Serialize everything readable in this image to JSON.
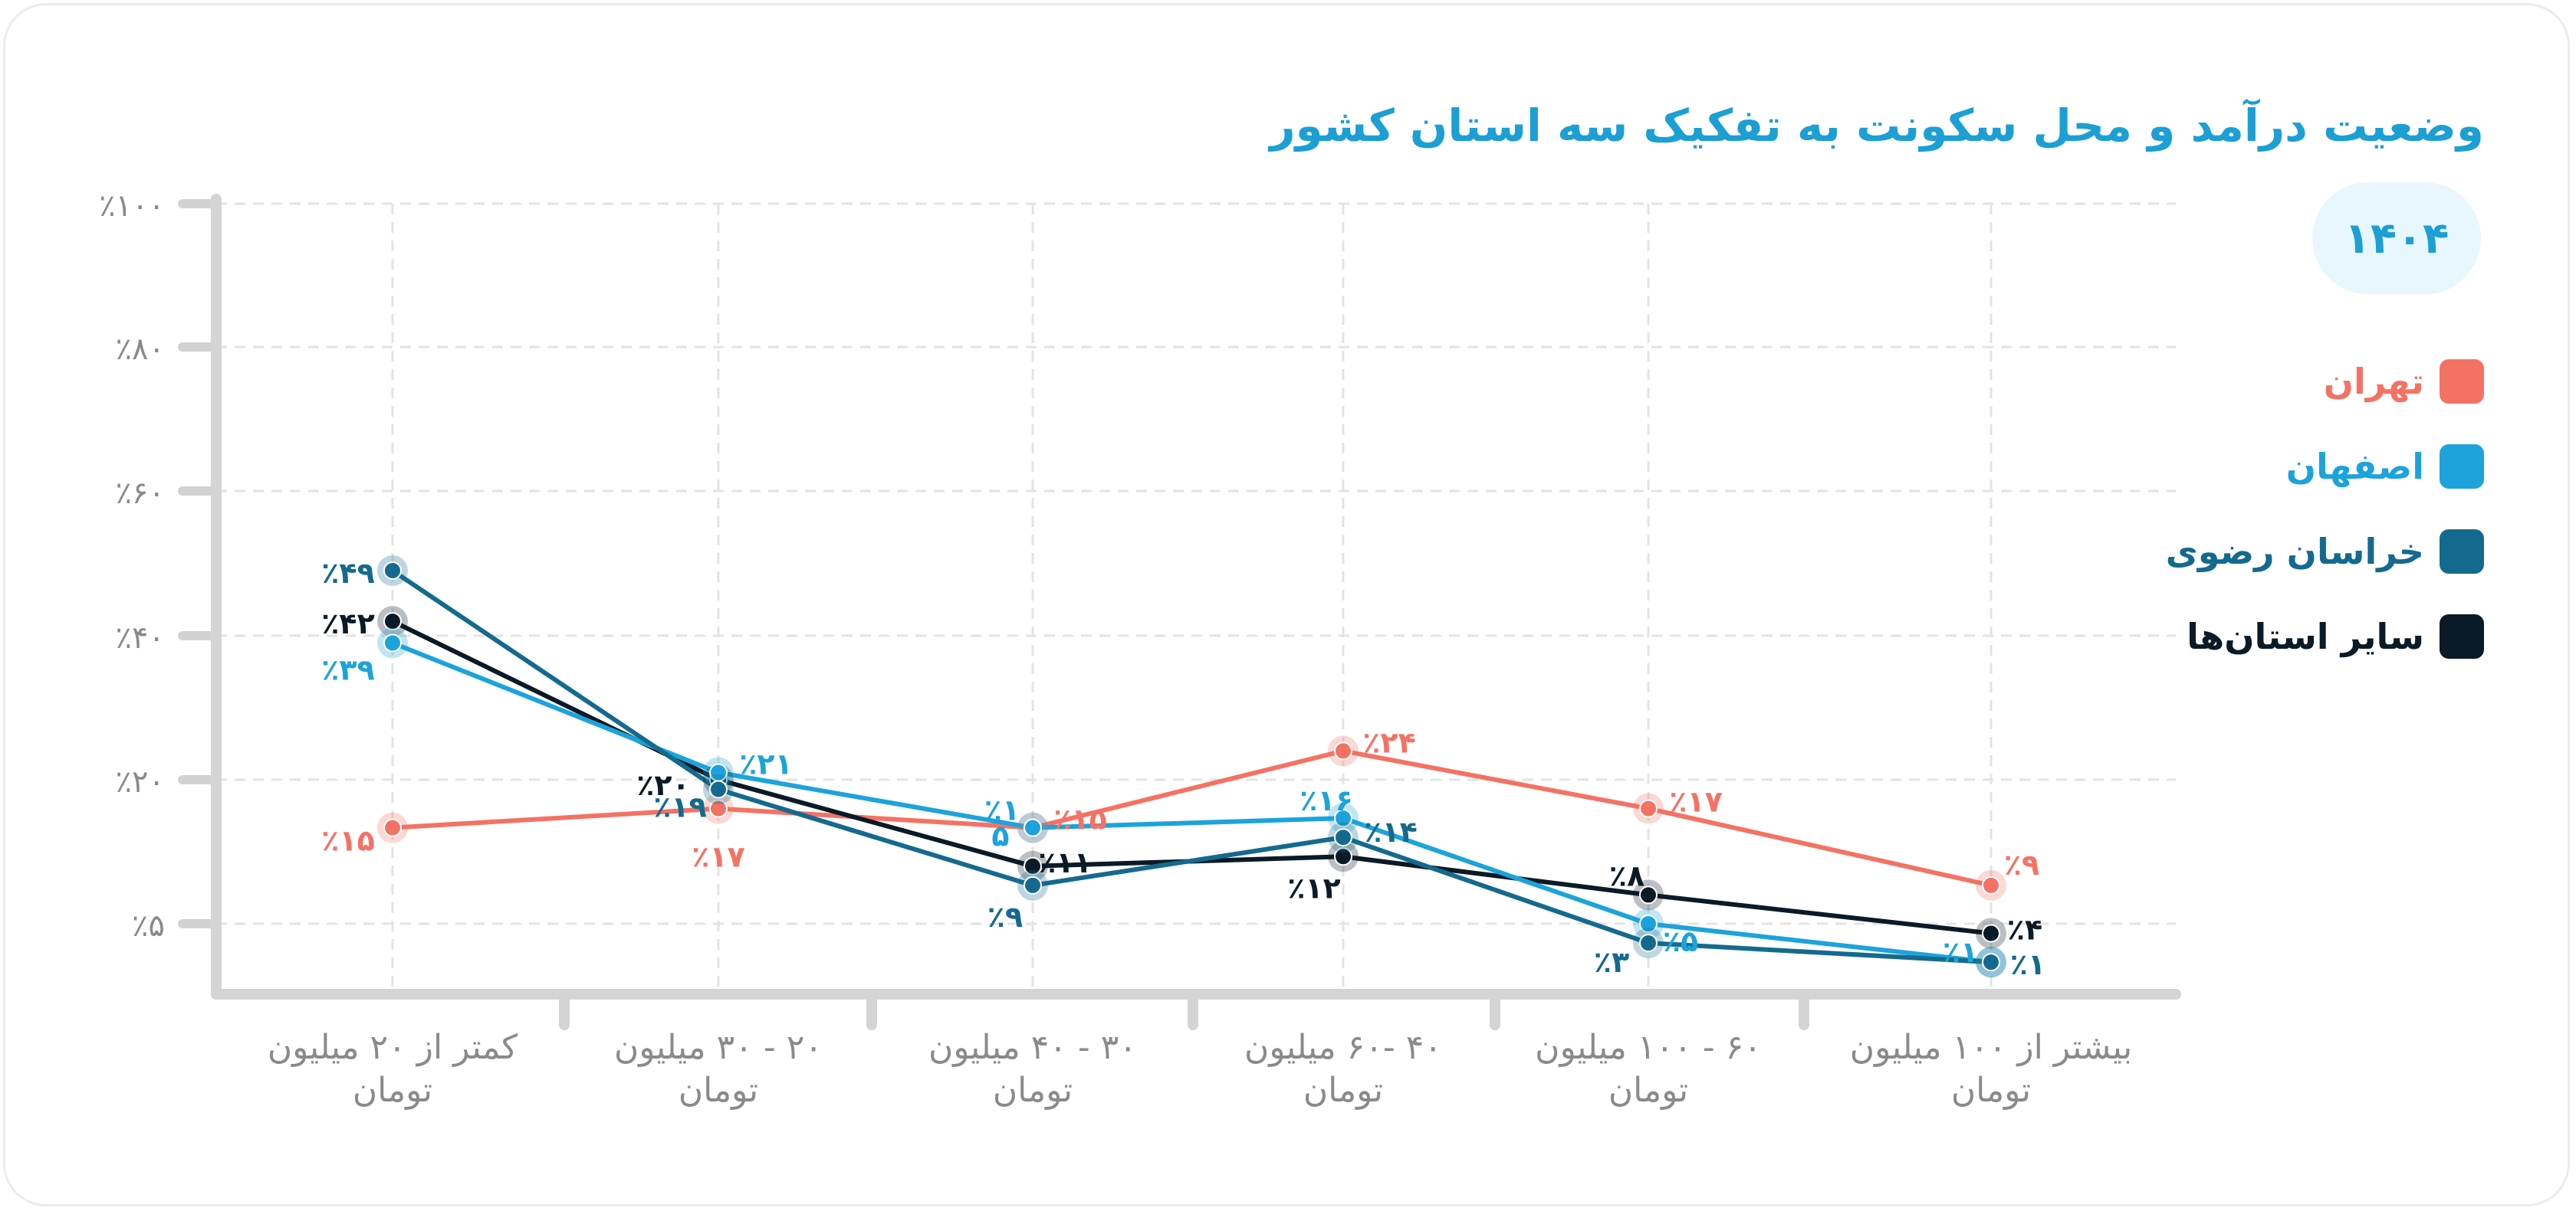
{
  "title": "وضعیت درآمد و محل سکونت به تفکیک سه استان کشور",
  "year": "۱۴۰۴",
  "chart_data": {
    "type": "line",
    "title": "وضعیت درآمد و محل سکونت به تفکیک سه استان کشور",
    "xlabel": "",
    "ylabel": "",
    "categories": [
      "کمتر از ۲۰ میلیون تومان",
      "۲۰ - ۳۰ میلیون تومان",
      "۳۰ - ۴۰ میلیون تومان",
      "۴۰ -۶۰ میلیون تومان",
      "۶۰ - ۱۰۰ میلیون تومان",
      "بیشتر از ۱۰۰ میلیون تومان"
    ],
    "category_lines": [
      [
        "کمتر از ۲۰ میلیون",
        "تومان"
      ],
      [
        "۲۰ - ۳۰ میلیون",
        "تومان"
      ],
      [
        "۳۰ - ۴۰ میلیون",
        "تومان"
      ],
      [
        "۴۰ -۶۰ میلیون",
        "تومان"
      ],
      [
        "۶۰ - ۱۰۰ میلیون",
        "تومان"
      ],
      [
        "بیشتر از ۱۰۰ میلیون",
        "تومان"
      ]
    ],
    "y_ticks": [
      {
        "value": 5,
        "label": "٪۵"
      },
      {
        "value": 20,
        "label": "٪۲۰"
      },
      {
        "value": 40,
        "label": "٪۴۰"
      },
      {
        "value": 60,
        "label": "٪۶۰"
      },
      {
        "value": 80,
        "label": "٪۸۰"
      },
      {
        "value": 100,
        "label": "٪۱۰۰"
      }
    ],
    "ylim": [
      0,
      100
    ],
    "grid": true,
    "legend_position": "right",
    "series": [
      {
        "name": "تهران",
        "color": "#f47264",
        "values": [
          15,
          17,
          15,
          24,
          17,
          9
        ],
        "labels": [
          "٪۱۵",
          "٪۱۷",
          "٪۱۵",
          "٪۲۴",
          "٪۱۷",
          "٪۹"
        ]
      },
      {
        "name": "اصفهان",
        "color": "#1ca3dc",
        "values": [
          39,
          21,
          15,
          16,
          5,
          1
        ],
        "labels": [
          "٪۳۹",
          "٪۲۱",
          "٪۱",
          "٪۱۶",
          "٪۵",
          "٪۱"
        ]
      },
      {
        "name": "خراسان رضوی",
        "color": "#146a8e",
        "values": [
          49,
          19,
          9,
          14,
          3,
          1
        ],
        "labels": [
          "٪۴۹",
          "٪۱۹",
          "٪۹",
          "٪۱۴",
          "٪۳",
          "٪۱"
        ]
      },
      {
        "name": "سایر استان‌ها",
        "color": "#0a1a26",
        "values": [
          42,
          20,
          11,
          12,
          8,
          4
        ],
        "labels": [
          "٪۴۲",
          "٪۲۰",
          "٪۱۱",
          "٪۱۲",
          "٪۸",
          "٪۴"
        ]
      }
    ],
    "extra_annotations": [
      {
        "text": "۵",
        "series": 1,
        "index": 2
      }
    ]
  }
}
